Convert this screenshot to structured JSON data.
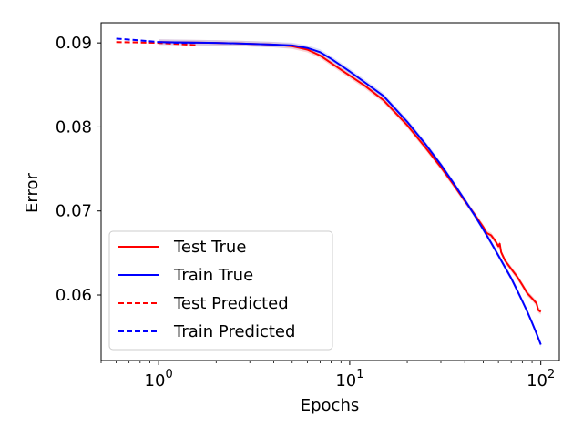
{
  "chart_data": {
    "type": "line",
    "xscale": "log",
    "xlabel": "Epochs",
    "ylabel": "Error",
    "xlim": [
      0.5,
      125
    ],
    "ylim": [
      0.0522,
      0.0924
    ],
    "x_ticks": [
      {
        "value": 1,
        "base": "10",
        "exp": "0"
      },
      {
        "value": 10,
        "base": "10",
        "exp": "1"
      },
      {
        "value": 100,
        "base": "10",
        "exp": "2"
      }
    ],
    "y_ticks": [
      {
        "value": 0.06,
        "label": "0.06"
      },
      {
        "value": 0.07,
        "label": "0.07"
      },
      {
        "value": 0.08,
        "label": "0.08"
      },
      {
        "value": 0.09,
        "label": "0.09"
      }
    ],
    "legend": {
      "placement": "lower-left"
    },
    "series": [
      {
        "name": "Test True",
        "color": "#ff0000",
        "style": "solid",
        "band_color": "#f4a0a0",
        "x": [
          1,
          2,
          3,
          4,
          5,
          5.5,
          6,
          7,
          8,
          10,
          12,
          15,
          20,
          25,
          30,
          35,
          40,
          45,
          50,
          52,
          55,
          58,
          60,
          61,
          62,
          65,
          70,
          75,
          80,
          85,
          90,
          95,
          97,
          100
        ],
        "y": [
          0.0901,
          0.09,
          0.0899,
          0.0898,
          0.0896,
          0.0894,
          0.0892,
          0.0885,
          0.0876,
          0.0861,
          0.0849,
          0.0832,
          0.0802,
          0.0775,
          0.0752,
          0.0731,
          0.0712,
          0.0696,
          0.0681,
          0.0674,
          0.0671,
          0.0664,
          0.0658,
          0.0661,
          0.0651,
          0.0641,
          0.0631,
          0.0622,
          0.0612,
          0.0602,
          0.0596,
          0.059,
          0.0582,
          0.058
        ]
      },
      {
        "name": "Train True",
        "color": "#0000ff",
        "style": "solid",
        "band_color": "#b0b8f0",
        "x": [
          1,
          2,
          3,
          4,
          5,
          6,
          7,
          8,
          10,
          12,
          15,
          20,
          25,
          30,
          35,
          40,
          45,
          50,
          55,
          60,
          65,
          70,
          75,
          80,
          85,
          90,
          95,
          100
        ],
        "y": [
          0.0901,
          0.09,
          0.0899,
          0.0898,
          0.0897,
          0.0894,
          0.0889,
          0.0881,
          0.0866,
          0.0853,
          0.0837,
          0.0806,
          0.0779,
          0.0755,
          0.0733,
          0.0713,
          0.0695,
          0.0678,
          0.0662,
          0.0647,
          0.0633,
          0.062,
          0.0606,
          0.0593,
          0.058,
          0.0567,
          0.0554,
          0.0541
        ]
      },
      {
        "name": "Test Predicted",
        "color": "#ff0000",
        "style": "dashed",
        "x": [
          0.6,
          0.8,
          1.0,
          1.3,
          1.6
        ],
        "y": [
          0.0901,
          0.09005,
          0.09,
          0.08985,
          0.0897
        ]
      },
      {
        "name": "Train Predicted",
        "color": "#0000ff",
        "style": "dashed",
        "x": [
          0.6,
          0.8,
          1.0,
          1.3,
          1.6
        ],
        "y": [
          0.0905,
          0.0903,
          0.0901,
          0.09,
          0.09
        ]
      }
    ]
  }
}
